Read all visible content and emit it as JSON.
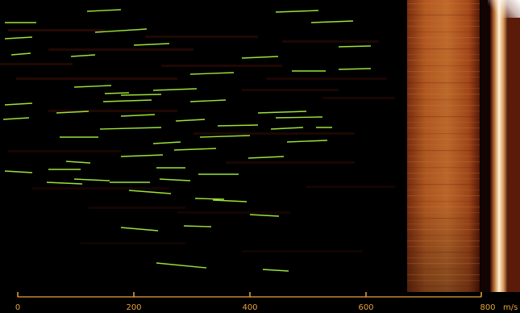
{
  "viewer": {
    "colors": {
      "background": "#000000",
      "trace": "#9ee23a",
      "axis": "#e8a23a",
      "stripe": "#6a1a0a"
    },
    "speed_axis": {
      "ticks": [
        {
          "value": 0,
          "label": "0"
        },
        {
          "value": 200,
          "label": "200"
        },
        {
          "value": 400,
          "label": "400"
        },
        {
          "value": 600,
          "label": "600"
        },
        {
          "value": 800,
          "label": "800"
        }
      ],
      "unit": "m/s",
      "range": [
        0,
        800
      ]
    }
  }
}
